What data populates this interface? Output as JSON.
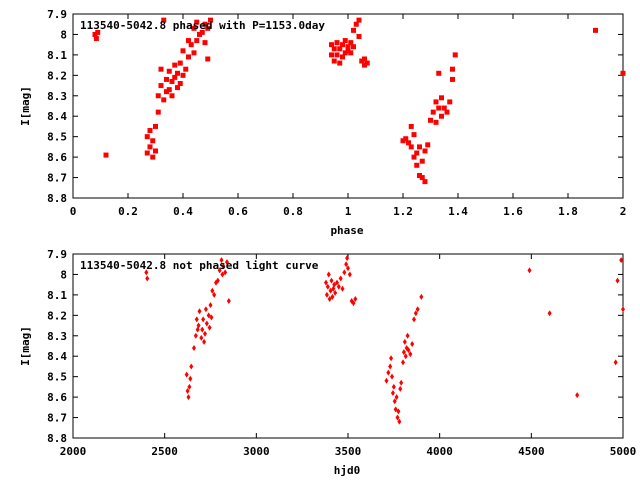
{
  "chart_data": [
    {
      "type": "scatter",
      "title": "113540-5042.8 phased with P=1153.0day",
      "xlabel": "phase",
      "ylabel": "I[mag]",
      "xlim": [
        0,
        2
      ],
      "ylim": [
        8.8,
        7.9
      ],
      "y_inverted": true,
      "grid": false,
      "marker_color": "#ff0000",
      "x_ticks": [
        0,
        0.2,
        0.4,
        0.6,
        0.8,
        1,
        1.2,
        1.4,
        1.6,
        1.8,
        2
      ],
      "x_tick_labels": [
        "0",
        "0.2",
        "0.4",
        "0.6",
        "0.8",
        "1",
        "1.2",
        "1.4",
        "1.6",
        "1.8",
        "2"
      ],
      "y_ticks": [
        7.9,
        8,
        8.1,
        8.2,
        8.3,
        8.4,
        8.5,
        8.6,
        8.7,
        8.8
      ],
      "y_tick_labels": [
        "7.9",
        "8",
        "8.1",
        "8.2",
        "8.3",
        "8.4",
        "8.5",
        "8.6",
        "8.7",
        "8.8"
      ],
      "series": [
        {
          "points": [
            [
              0.08,
              8.0
            ],
            [
              0.085,
              8.02
            ],
            [
              0.09,
              7.99
            ],
            [
              0.12,
              8.59
            ],
            [
              0.27,
              8.5
            ],
            [
              0.27,
              8.58
            ],
            [
              0.28,
              8.55
            ],
            [
              0.28,
              8.47
            ],
            [
              0.29,
              8.6
            ],
            [
              0.29,
              8.52
            ],
            [
              0.3,
              8.45
            ],
            [
              0.3,
              8.57
            ],
            [
              0.31,
              8.38
            ],
            [
              0.31,
              8.3
            ],
            [
              0.32,
              8.25
            ],
            [
              0.32,
              8.17
            ],
            [
              0.33,
              7.93
            ],
            [
              0.33,
              8.32
            ],
            [
              0.34,
              8.22
            ],
            [
              0.34,
              8.28
            ],
            [
              0.35,
              8.27
            ],
            [
              0.35,
              8.18
            ],
            [
              0.36,
              8.23
            ],
            [
              0.36,
              8.3
            ],
            [
              0.37,
              8.21
            ],
            [
              0.37,
              8.15
            ],
            [
              0.38,
              8.26
            ],
            [
              0.38,
              8.19
            ],
            [
              0.39,
              8.14
            ],
            [
              0.39,
              8.24
            ],
            [
              0.4,
              8.2
            ],
            [
              0.4,
              8.08
            ],
            [
              0.41,
              8.17
            ],
            [
              0.42,
              8.11
            ],
            [
              0.42,
              8.03
            ],
            [
              0.43,
              8.05
            ],
            [
              0.44,
              7.97
            ],
            [
              0.44,
              8.09
            ],
            [
              0.45,
              7.94
            ],
            [
              0.45,
              8.03
            ],
            [
              0.46,
              8.0
            ],
            [
              0.47,
              7.99
            ],
            [
              0.48,
              7.95
            ],
            [
              0.48,
              8.04
            ],
            [
              0.49,
              7.97
            ],
            [
              0.5,
              7.93
            ],
            [
              0.49,
              8.12
            ],
            [
              0.94,
              8.05
            ],
            [
              0.94,
              8.1
            ],
            [
              0.95,
              8.07
            ],
            [
              0.95,
              8.13
            ],
            [
              0.96,
              8.1
            ],
            [
              0.96,
              8.04
            ],
            [
              0.97,
              8.14
            ],
            [
              0.97,
              8.07
            ],
            [
              0.98,
              8.11
            ],
            [
              0.98,
              8.05
            ],
            [
              0.99,
              8.09
            ],
            [
              0.99,
              8.03
            ],
            [
              1.0,
              8.06
            ],
            [
              1.0,
              8.08
            ],
            [
              1.01,
              8.04
            ],
            [
              1.01,
              8.09
            ],
            [
              1.02,
              8.06
            ],
            [
              1.02,
              7.98
            ],
            [
              1.03,
              7.95
            ],
            [
              1.04,
              7.93
            ],
            [
              1.04,
              8.01
            ],
            [
              1.05,
              8.13
            ],
            [
              1.06,
              8.15
            ],
            [
              1.06,
              8.12
            ],
            [
              1.07,
              8.14
            ],
            [
              1.2,
              8.52
            ],
            [
              1.21,
              8.51
            ],
            [
              1.22,
              8.53
            ],
            [
              1.23,
              8.45
            ],
            [
              1.23,
              8.55
            ],
            [
              1.24,
              8.49
            ],
            [
              1.24,
              8.6
            ],
            [
              1.25,
              8.58
            ],
            [
              1.25,
              8.64
            ],
            [
              1.26,
              8.69
            ],
            [
              1.26,
              8.55
            ],
            [
              1.27,
              8.7
            ],
            [
              1.27,
              8.62
            ],
            [
              1.28,
              8.72
            ],
            [
              1.28,
              8.57
            ],
            [
              1.29,
              8.54
            ],
            [
              1.3,
              8.42
            ],
            [
              1.31,
              8.38
            ],
            [
              1.32,
              8.33
            ],
            [
              1.32,
              8.43
            ],
            [
              1.33,
              8.36
            ],
            [
              1.33,
              8.19
            ],
            [
              1.34,
              8.4
            ],
            [
              1.34,
              8.31
            ],
            [
              1.35,
              8.36
            ],
            [
              1.36,
              8.38
            ],
            [
              1.37,
              8.33
            ],
            [
              1.38,
              8.22
            ],
            [
              1.38,
              8.17
            ],
            [
              1.39,
              8.1
            ],
            [
              1.9,
              7.98
            ],
            [
              2.0,
              8.19
            ]
          ]
        }
      ]
    },
    {
      "type": "scatter",
      "title": "113540-5042.8 not phased light curve",
      "xlabel": "hjd0",
      "ylabel": "I[mag]",
      "xlim": [
        2000,
        5000
      ],
      "ylim": [
        8.8,
        7.9
      ],
      "y_inverted": true,
      "grid": false,
      "marker_color": "#ff0000",
      "x_ticks": [
        2000,
        2500,
        3000,
        3500,
        4000,
        4500,
        5000
      ],
      "x_tick_labels": [
        "2000",
        "2500",
        "3000",
        "3500",
        "4000",
        "4500",
        "5000"
      ],
      "y_ticks": [
        7.9,
        8,
        8.1,
        8.2,
        8.3,
        8.4,
        8.5,
        8.6,
        8.7,
        8.8
      ],
      "y_tick_labels": [
        "7.9",
        "8",
        "8.1",
        "8.2",
        "8.3",
        "8.4",
        "8.5",
        "8.6",
        "8.7",
        "8.8"
      ],
      "series": [
        {
          "points": [
            [
              2400,
              7.99
            ],
            [
              2405,
              8.02
            ],
            [
              2620,
              8.49
            ],
            [
              2625,
              8.57
            ],
            [
              2630,
              8.6
            ],
            [
              2635,
              8.55
            ],
            [
              2640,
              8.51
            ],
            [
              2645,
              8.45
            ],
            [
              2660,
              8.36
            ],
            [
              2670,
              8.3
            ],
            [
              2675,
              8.22
            ],
            [
              2680,
              8.27
            ],
            [
              2685,
              8.25
            ],
            [
              2690,
              8.18
            ],
            [
              2700,
              8.31
            ],
            [
              2705,
              8.27
            ],
            [
              2710,
              8.22
            ],
            [
              2715,
              8.33
            ],
            [
              2720,
              8.29
            ],
            [
              2725,
              8.17
            ],
            [
              2730,
              8.24
            ],
            [
              2740,
              8.2
            ],
            [
              2745,
              8.26
            ],
            [
              2750,
              8.15
            ],
            [
              2755,
              8.21
            ],
            [
              2760,
              8.08
            ],
            [
              2770,
              8.1
            ],
            [
              2780,
              8.04
            ],
            [
              2790,
              8.03
            ],
            [
              2800,
              7.98
            ],
            [
              2810,
              7.93
            ],
            [
              2815,
              8.0
            ],
            [
              2820,
              7.96
            ],
            [
              2830,
              7.99
            ],
            [
              2840,
              7.94
            ],
            [
              2850,
              8.13
            ],
            [
              3380,
              8.04
            ],
            [
              3385,
              8.1
            ],
            [
              3390,
              8.06
            ],
            [
              3395,
              8.0
            ],
            [
              3400,
              8.12
            ],
            [
              3405,
              8.08
            ],
            [
              3410,
              8.03
            ],
            [
              3415,
              8.11
            ],
            [
              3420,
              8.07
            ],
            [
              3425,
              8.05
            ],
            [
              3430,
              8.09
            ],
            [
              3440,
              8.04
            ],
            [
              3450,
              8.06
            ],
            [
              3460,
              8.02
            ],
            [
              3470,
              8.07
            ],
            [
              3480,
              7.99
            ],
            [
              3490,
              7.95
            ],
            [
              3495,
              7.92
            ],
            [
              3500,
              7.97
            ],
            [
              3510,
              8.0
            ],
            [
              3520,
              8.13
            ],
            [
              3530,
              8.14
            ],
            [
              3540,
              8.12
            ],
            [
              3710,
              8.52
            ],
            [
              3720,
              8.48
            ],
            [
              3730,
              8.45
            ],
            [
              3735,
              8.41
            ],
            [
              3740,
              8.5
            ],
            [
              3745,
              8.58
            ],
            [
              3750,
              8.55
            ],
            [
              3755,
              8.62
            ],
            [
              3760,
              8.66
            ],
            [
              3765,
              8.6
            ],
            [
              3770,
              8.7
            ],
            [
              3775,
              8.67
            ],
            [
              3780,
              8.72
            ],
            [
              3785,
              8.56
            ],
            [
              3790,
              8.53
            ],
            [
              3800,
              8.43
            ],
            [
              3805,
              8.38
            ],
            [
              3810,
              8.33
            ],
            [
              3815,
              8.4
            ],
            [
              3820,
              8.36
            ],
            [
              3825,
              8.3
            ],
            [
              3830,
              8.37
            ],
            [
              3840,
              8.39
            ],
            [
              3850,
              8.34
            ],
            [
              3860,
              8.22
            ],
            [
              3870,
              8.19
            ],
            [
              3880,
              8.17
            ],
            [
              3900,
              8.11
            ],
            [
              4490,
              7.98
            ],
            [
              4600,
              8.19
            ],
            [
              4750,
              8.59
            ],
            [
              4960,
              8.43
            ],
            [
              4970,
              8.03
            ],
            [
              4990,
              7.93
            ],
            [
              5000,
              8.17
            ]
          ]
        }
      ]
    }
  ]
}
